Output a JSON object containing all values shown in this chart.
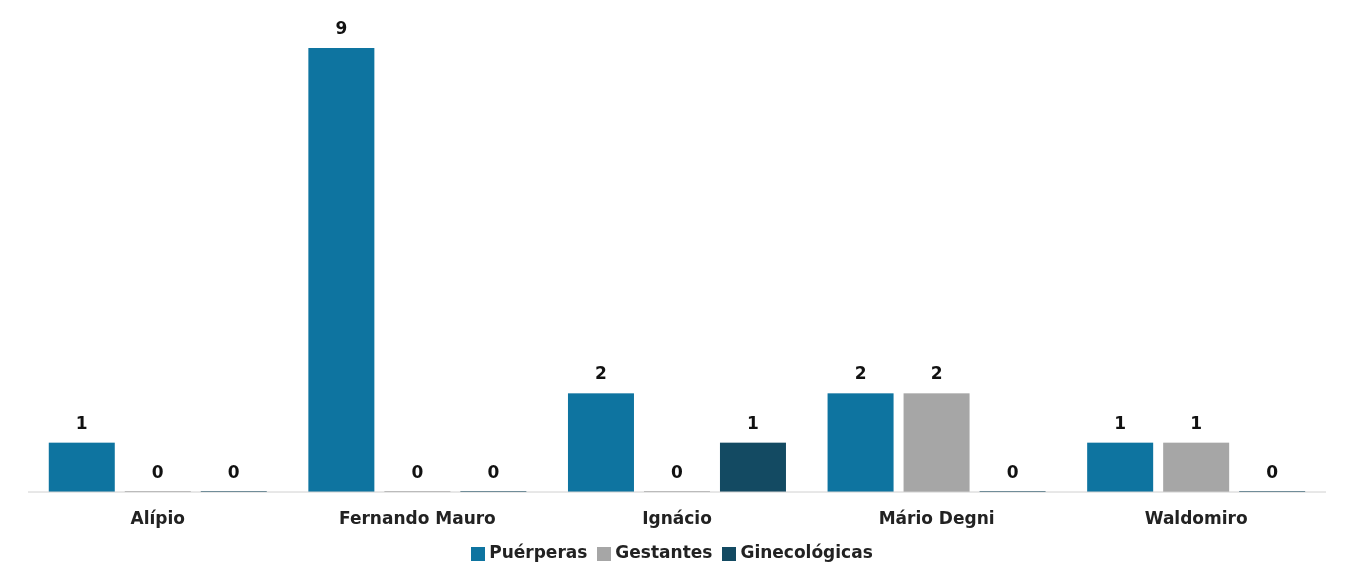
{
  "chart_data": {
    "type": "bar",
    "categories": [
      "Alípio",
      "Fernando Mauro",
      "Ignácio",
      "Mário Degni",
      "Waldomiro"
    ],
    "series": [
      {
        "name": "Puérperas",
        "color": "#0e74a0",
        "values": [
          1,
          9,
          2,
          2,
          1
        ]
      },
      {
        "name": "Gestantes",
        "color": "#a6a6a6",
        "values": [
          0,
          0,
          0,
          2,
          1
        ]
      },
      {
        "name": "Ginecológicas",
        "color": "#134a62",
        "values": [
          0,
          0,
          1,
          0,
          0
        ]
      }
    ],
    "data_labels": true,
    "legend": "bottom",
    "grid": false
  }
}
